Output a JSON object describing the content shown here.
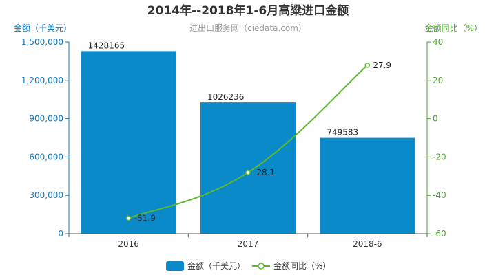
{
  "chart_data": {
    "type": "bar",
    "title": "2014年--2018年1-6月高粱进口金额",
    "subtitle": "进出口服务网（ciedata.com）",
    "categories": [
      "2016",
      "2017",
      "2018-6"
    ],
    "left_axis": {
      "label": "金额（千美元）",
      "ylim": [
        0,
        1500000
      ],
      "ticks": [
        0,
        300000,
        600000,
        900000,
        1200000,
        1500000
      ],
      "tick_labels": [
        "0",
        "300,000",
        "600,000",
        "900,000",
        "1,200,000",
        "1,500,000"
      ]
    },
    "right_axis": {
      "label": "金额同比（%）",
      "ylim": [
        -60,
        40
      ],
      "ticks": [
        -60,
        -40,
        -20,
        0,
        20,
        40
      ],
      "tick_labels": [
        "-60",
        "-40",
        "-20",
        "0",
        "20",
        "40"
      ]
    },
    "series": [
      {
        "name": "金额（千美元）",
        "type": "bar",
        "axis": "left",
        "values": [
          1428165,
          1026236,
          749583
        ],
        "data_labels": [
          "1428165",
          "1026236",
          "749583"
        ]
      },
      {
        "name": "金额同比（%）",
        "type": "line",
        "axis": "right",
        "values": [
          -51.9,
          -28.1,
          27.9
        ],
        "data_labels": [
          "-51.9",
          "-28.1",
          "27.9"
        ]
      }
    ],
    "legend_position": "bottom-center",
    "grid": false,
    "colors": {
      "bar": "#0a8ac9",
      "line": "#5cb82e",
      "left_axis": "#1577b8",
      "right_axis": "#4aa52c",
      "title": "#333333",
      "subtitle": "#999999"
    }
  }
}
